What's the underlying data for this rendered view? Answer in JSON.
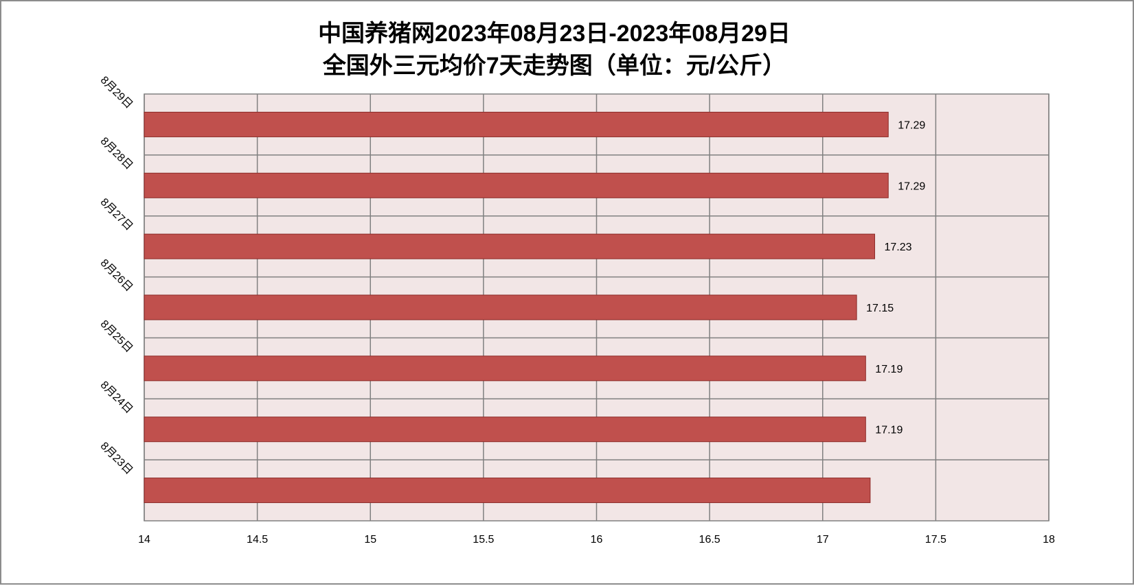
{
  "chart_data": {
    "type": "bar",
    "orientation": "horizontal",
    "title_lines": [
      "中国养猪网2023年08月23日-2023年08月29日",
      "全国外三元均价7天走势图（单位：元/公斤）"
    ],
    "xlabel": "",
    "ylabel": "",
    "categories": [
      "8月29日",
      "8月28日",
      "8月27日",
      "8月26日",
      "8月25日",
      "8月24日",
      "8月23日"
    ],
    "values": [
      17.29,
      17.29,
      17.23,
      17.15,
      17.19,
      17.19,
      17.21
    ],
    "data_labels": [
      "17.29",
      "17.29",
      "17.23",
      "17.15",
      "17.19",
      "17.19",
      ""
    ],
    "xlim": [
      14,
      18
    ],
    "x_ticks": [
      14,
      14.5,
      15,
      15.5,
      16,
      16.5,
      17,
      17.5,
      18
    ],
    "x_tick_labels": [
      "14",
      "14.5",
      "15",
      "15.5",
      "16",
      "16.5",
      "17",
      "17.5",
      "18"
    ],
    "grid": true,
    "legend": "none",
    "colors": {
      "bar_fill": "#c0504d",
      "bar_stroke": "#8b2a27",
      "plot_background": "#f2e6e6",
      "grid": "#808080",
      "frame": "#8c8c8c"
    }
  }
}
